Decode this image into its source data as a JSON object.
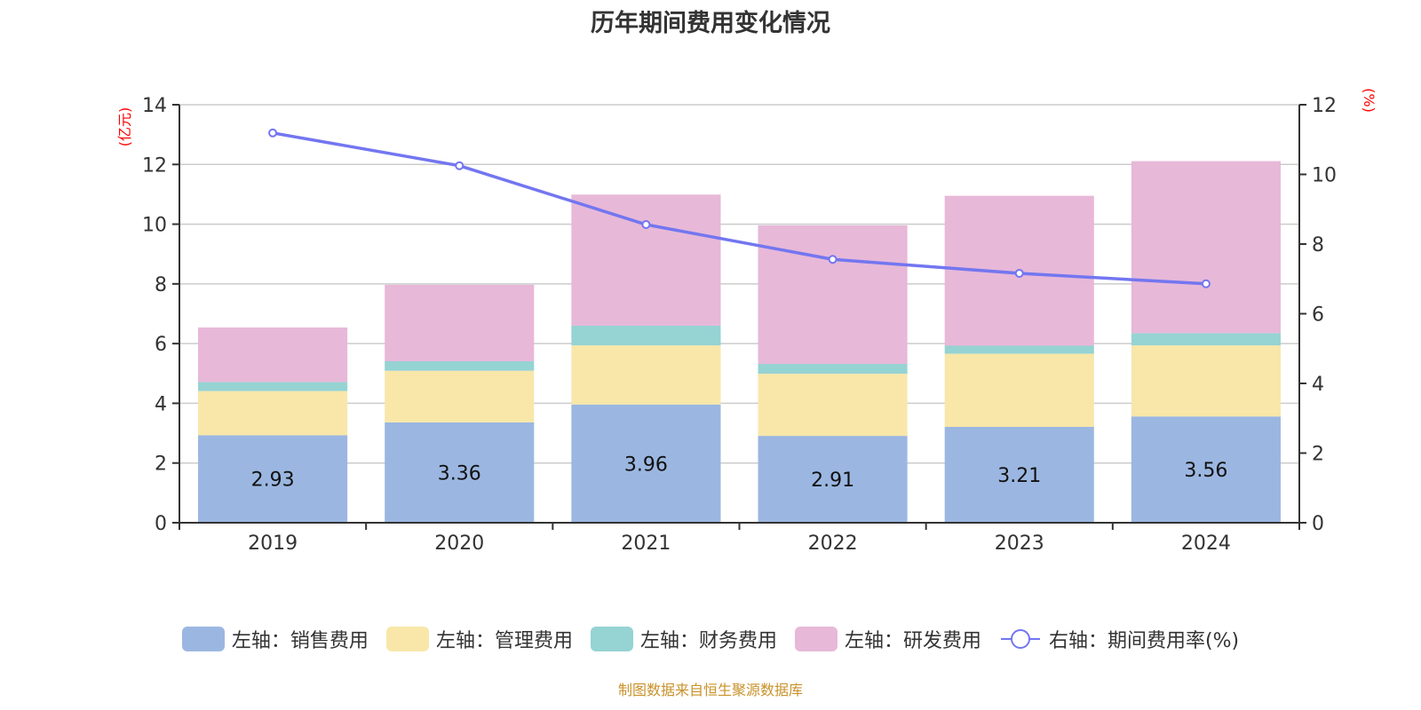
{
  "title": "历年期间费用变化情况",
  "footer": "制图数据来自恒生聚源数据库",
  "chart_data": {
    "type": "bar",
    "stacked": true,
    "title": "历年期间费用变化情况",
    "categories": [
      "2019",
      "2020",
      "2021",
      "2022",
      "2023",
      "2024"
    ],
    "left_axis": {
      "label": "(亿元)",
      "ylim": [
        0,
        14
      ],
      "ticks": [
        0,
        2,
        4,
        6,
        8,
        10,
        12,
        14
      ],
      "label_color": "#ff0000"
    },
    "right_axis": {
      "label": "(%)",
      "ylim": [
        0,
        12
      ],
      "ticks": [
        0,
        2,
        4,
        6,
        8,
        10,
        12
      ],
      "label_color": "#ff0000"
    },
    "grid": true,
    "legend_position": "bottom",
    "series": [
      {
        "name": "左轴：销售费用",
        "type": "bar",
        "axis": "left",
        "color": "#9bb7e1",
        "values": [
          2.93,
          3.36,
          3.96,
          2.91,
          3.21,
          3.56
        ],
        "show_labels": true
      },
      {
        "name": "左轴：管理费用",
        "type": "bar",
        "axis": "left",
        "color": "#f8e7a9",
        "values": [
          1.48,
          1.73,
          1.98,
          2.08,
          2.45,
          2.38
        ]
      },
      {
        "name": "左轴：财务费用",
        "type": "bar",
        "axis": "left",
        "color": "#96d3d3",
        "values": [
          0.3,
          0.32,
          0.66,
          0.33,
          0.27,
          0.41
        ]
      },
      {
        "name": "左轴：研发费用",
        "type": "bar",
        "axis": "left",
        "color": "#e7b8d8",
        "values": [
          1.83,
          2.56,
          4.39,
          4.64,
          5.02,
          5.76
        ]
      },
      {
        "name": "右轴：期间费用率(%)",
        "type": "line",
        "axis": "right",
        "color": "#7376f0",
        "values": [
          11.19,
          10.25,
          8.56,
          7.56,
          7.16,
          6.86
        ]
      }
    ]
  }
}
